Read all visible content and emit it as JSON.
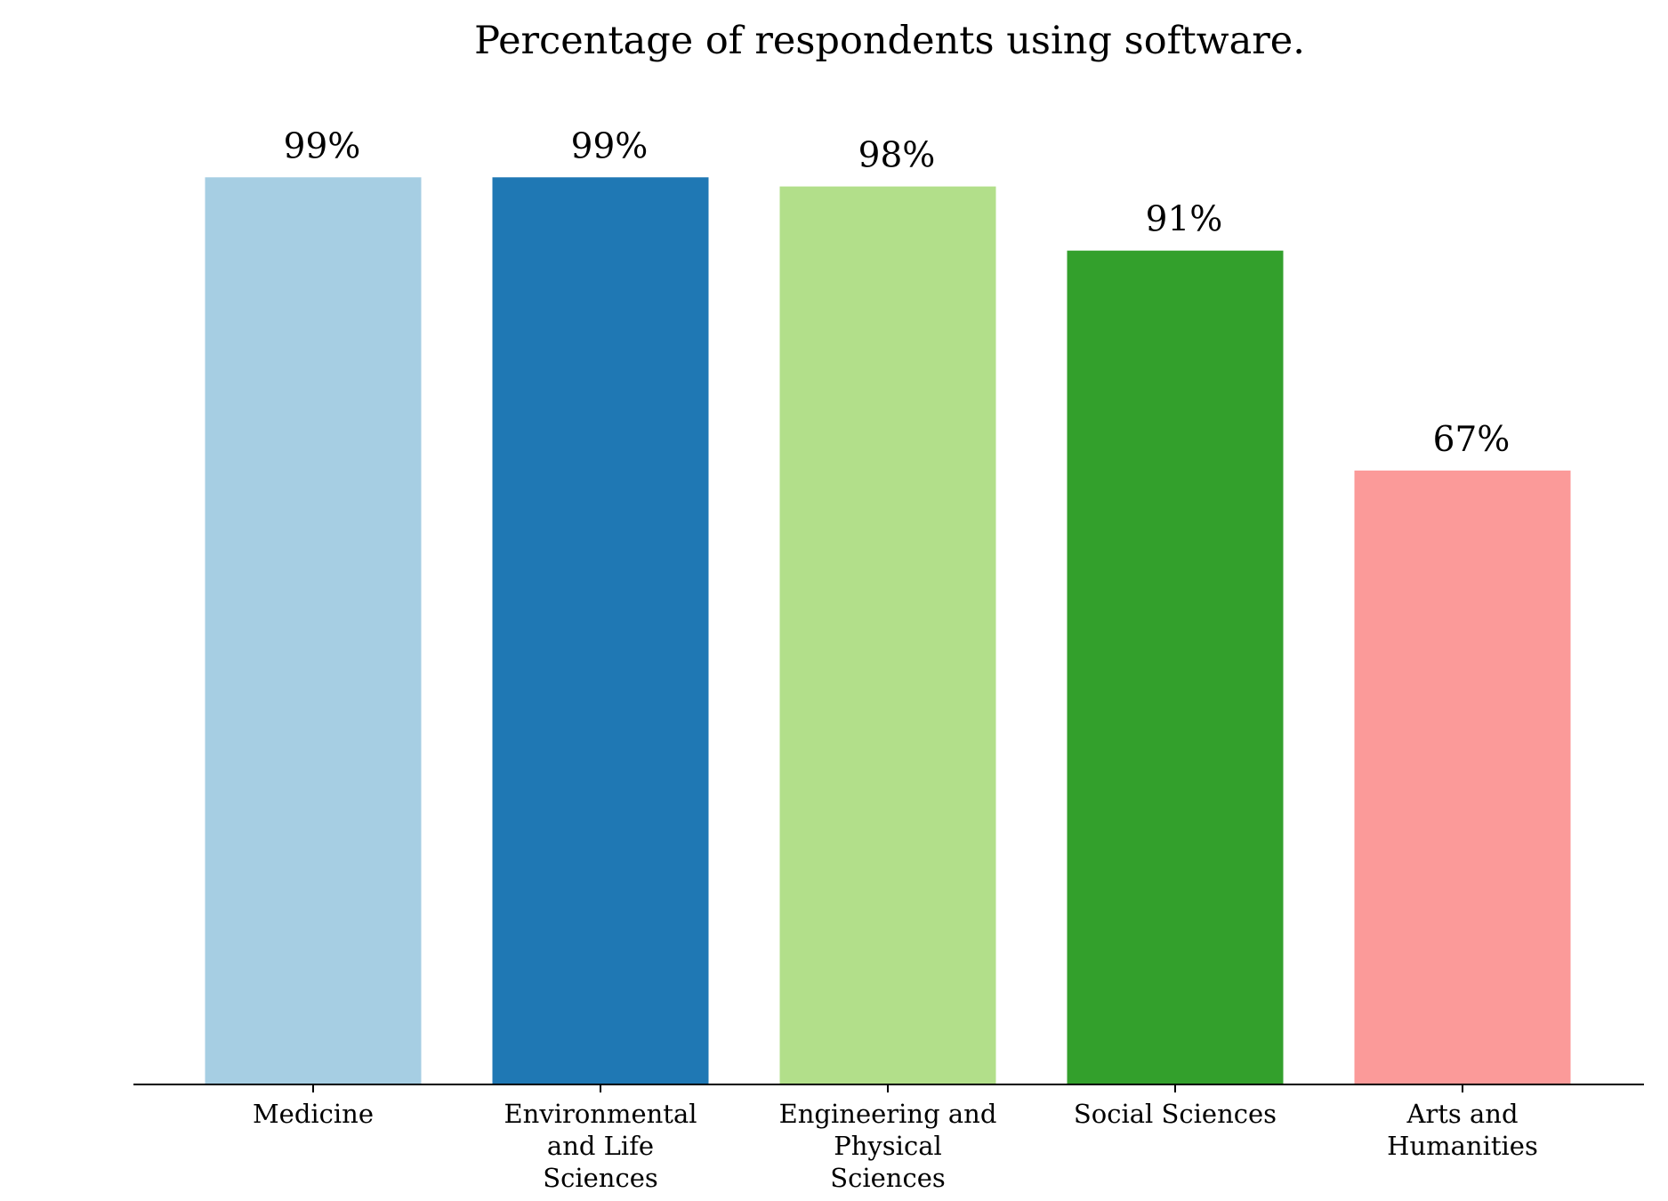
{
  "chart_data": {
    "type": "bar",
    "title": "Percentage of respondents using software.",
    "xlabel": "",
    "ylabel": "",
    "ylim": [
      0,
      100
    ],
    "categories": [
      [
        "Medicine"
      ],
      [
        "Environmental",
        "and Life",
        "Sciences"
      ],
      [
        "Engineering and",
        "Physical",
        "Sciences"
      ],
      [
        "Social Sciences"
      ],
      [
        "Arts and",
        "Humanities"
      ]
    ],
    "values": [
      99,
      99,
      98,
      91,
      67
    ],
    "value_labels": [
      "99%",
      "99%",
      "98%",
      "91%",
      "67%"
    ],
    "colors": [
      "#a6cee3",
      "#1f78b4",
      "#b2df8a",
      "#33a02c",
      "#fb9a99"
    ],
    "grid": false,
    "legend": "none"
  }
}
